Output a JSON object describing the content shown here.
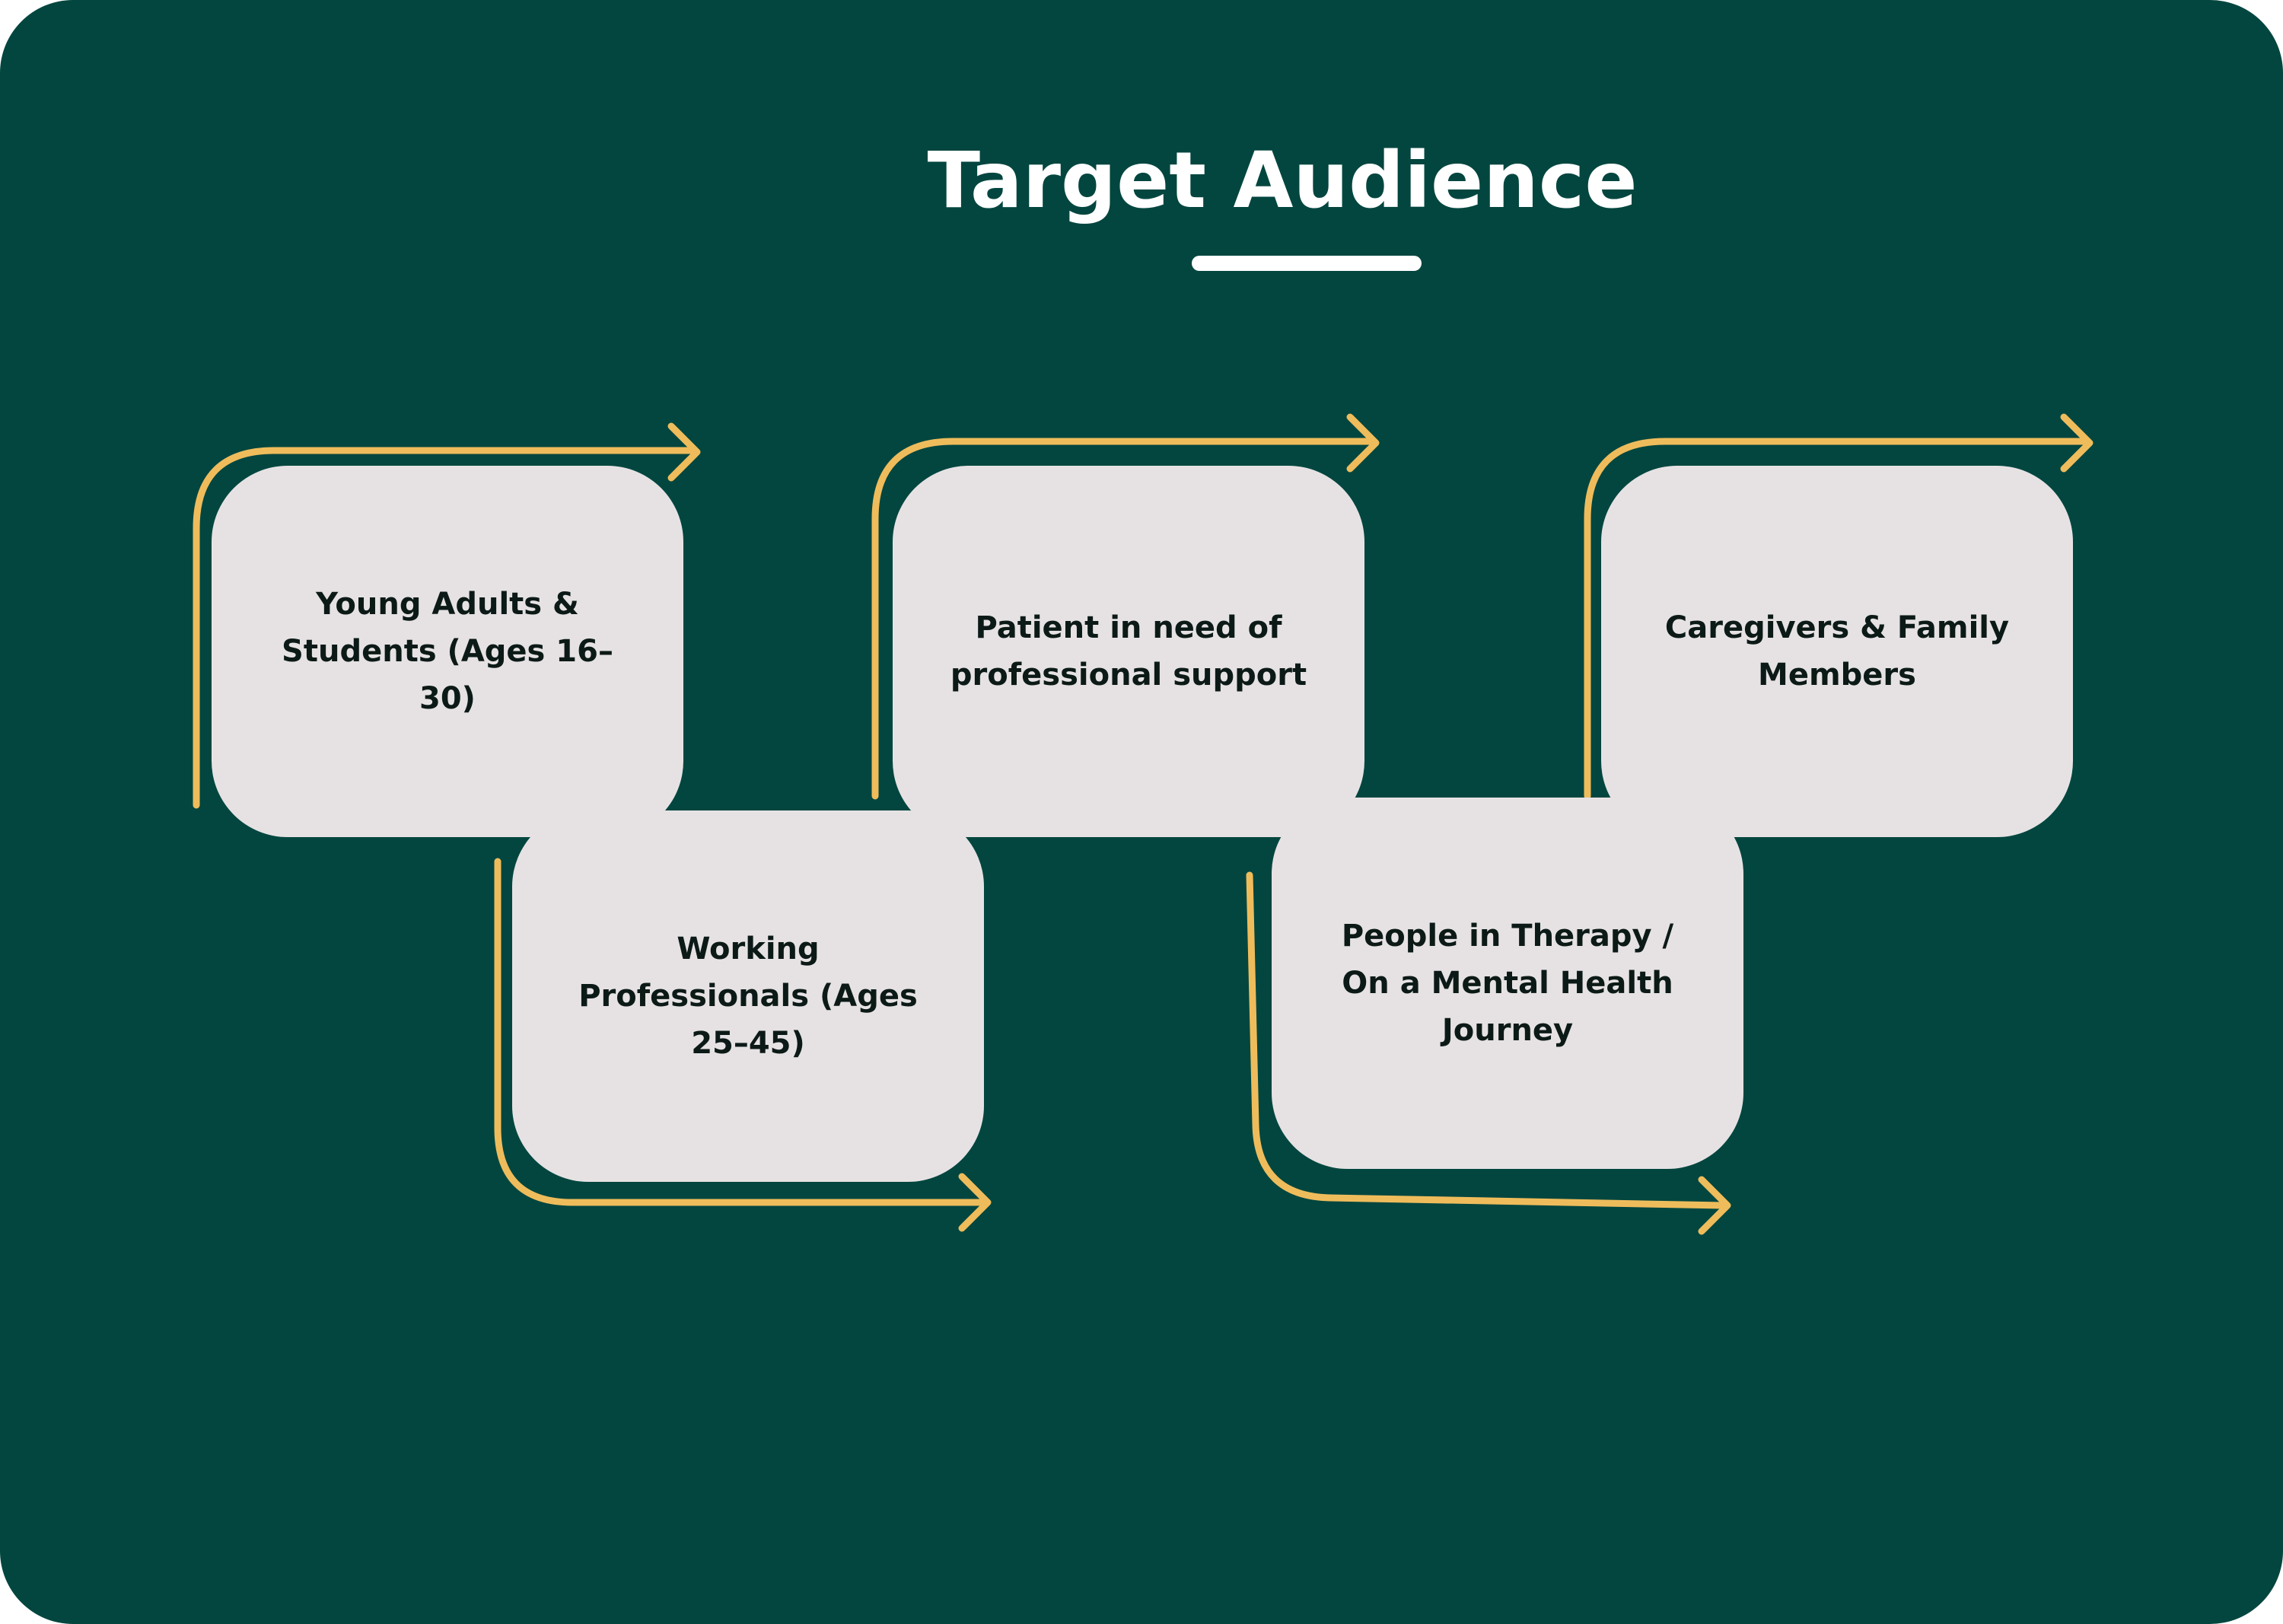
{
  "title": "Target Audience",
  "colors": {
    "background": "#02463f",
    "box": "#e6e2e3",
    "arrow": "#efbc5c",
    "title": "#ffffff",
    "box_text": "#0c1a17"
  },
  "audience": [
    {
      "label": "Young Adults & Students (Ages 16–30)"
    },
    {
      "label": "Working Professionals (Ages 25–45)"
    },
    {
      "label": "Patient in need of professional support"
    },
    {
      "label": "People in Therapy / On a Mental Health Journey"
    },
    {
      "label": "Caregivers & Family Members"
    }
  ]
}
